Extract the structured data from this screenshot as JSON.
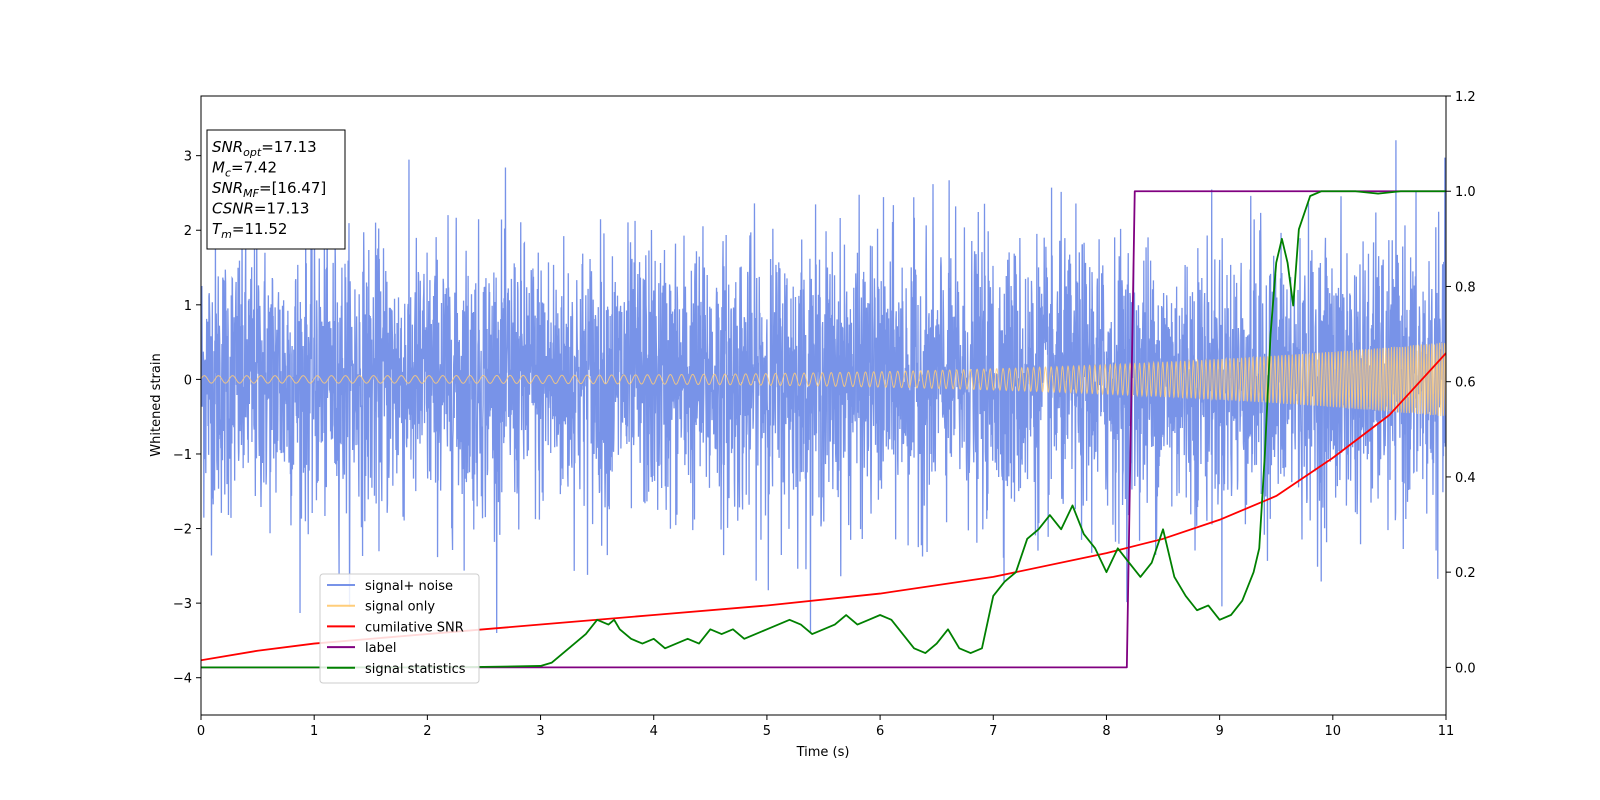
{
  "chart_data": {
    "type": "line",
    "title": "",
    "xlabel": "Time (s)",
    "ylabel": "Whitened strain",
    "xlim": [
      0,
      11
    ],
    "ylim": [
      -4.5,
      3.8
    ],
    "y2lim": [
      -0.1,
      1.2
    ],
    "xticks": [
      "0",
      "1",
      "2",
      "3",
      "4",
      "5",
      "6",
      "7",
      "8",
      "9",
      "10",
      "11"
    ],
    "yticks": [
      "−4",
      "−3",
      "−2",
      "−1",
      "0",
      "1",
      "2",
      "3"
    ],
    "y2ticks": [
      "0.0",
      "0.2",
      "0.4",
      "0.6",
      "0.8",
      "1.0",
      "1.2"
    ],
    "grid": false,
    "legend_position": "lower-left",
    "info_box": [
      {
        "base": "SNR",
        "sub": "opt",
        "value": "=17.13"
      },
      {
        "base": "M",
        "sub": "c",
        "value": "=7.42"
      },
      {
        "base": "SNR",
        "sub": "MF",
        "value": "=[16.47]"
      },
      {
        "base": "CSNR",
        "sub": "",
        "value": "=17.13"
      },
      {
        "base": "T",
        "sub": "m",
        "value": "=11.52"
      }
    ],
    "series": [
      {
        "name": "signal+ noise",
        "color": "#7893e8",
        "axis": "left",
        "kind": "noisy",
        "std": 0.9,
        "peak_max": 3.4,
        "peak_min": -3.4
      },
      {
        "name": "signal only",
        "color": "#ffcd7a",
        "axis": "left",
        "kind": "chirp",
        "amplitude_start": 0.05,
        "amplitude_end": 0.5,
        "freq_start": 8,
        "freq_end": 45
      },
      {
        "name": "cumilative SNR",
        "color": "#ff0000",
        "axis": "right",
        "kind": "line",
        "x": [
          0,
          0.5,
          1,
          2,
          3,
          4,
          5,
          6,
          7,
          8,
          8.5,
          9,
          9.5,
          10,
          10.5,
          11
        ],
        "y": [
          0.015,
          0.035,
          0.05,
          0.07,
          0.09,
          0.11,
          0.13,
          0.155,
          0.19,
          0.24,
          0.27,
          0.31,
          0.36,
          0.44,
          0.53,
          0.66
        ]
      },
      {
        "name": "label",
        "color": "#800080",
        "axis": "right",
        "kind": "line",
        "x": [
          0,
          8.18,
          8.25,
          11
        ],
        "y": [
          0,
          0,
          1,
          1
        ]
      },
      {
        "name": "signal statistics",
        "color": "#008000",
        "axis": "right",
        "kind": "line",
        "x": [
          0,
          0.5,
          1,
          1.5,
          2,
          2.5,
          3,
          3.1,
          3.2,
          3.3,
          3.4,
          3.5,
          3.6,
          3.65,
          3.7,
          3.8,
          3.9,
          4.0,
          4.1,
          4.2,
          4.3,
          4.4,
          4.5,
          4.6,
          4.7,
          4.8,
          4.9,
          5.0,
          5.1,
          5.2,
          5.3,
          5.4,
          5.5,
          5.6,
          5.7,
          5.8,
          5.9,
          6.0,
          6.1,
          6.2,
          6.3,
          6.4,
          6.5,
          6.6,
          6.7,
          6.8,
          6.9,
          7.0,
          7.1,
          7.2,
          7.3,
          7.4,
          7.5,
          7.6,
          7.7,
          7.8,
          7.9,
          8.0,
          8.1,
          8.2,
          8.3,
          8.4,
          8.5,
          8.6,
          8.7,
          8.8,
          8.9,
          9.0,
          9.1,
          9.2,
          9.25,
          9.3,
          9.35,
          9.4,
          9.45,
          9.5,
          9.55,
          9.6,
          9.65,
          9.7,
          9.8,
          9.9,
          10.0,
          10.2,
          10.4,
          10.6,
          10.8,
          11.0
        ],
        "y": [
          0.0,
          0.0,
          0.0,
          0.0,
          0.0,
          0.001,
          0.003,
          0.01,
          0.03,
          0.05,
          0.07,
          0.1,
          0.09,
          0.1,
          0.08,
          0.06,
          0.05,
          0.06,
          0.04,
          0.05,
          0.06,
          0.05,
          0.08,
          0.07,
          0.08,
          0.06,
          0.07,
          0.08,
          0.09,
          0.1,
          0.09,
          0.07,
          0.08,
          0.09,
          0.11,
          0.09,
          0.1,
          0.11,
          0.1,
          0.07,
          0.04,
          0.03,
          0.05,
          0.08,
          0.04,
          0.03,
          0.04,
          0.15,
          0.18,
          0.2,
          0.27,
          0.29,
          0.32,
          0.29,
          0.34,
          0.28,
          0.25,
          0.2,
          0.25,
          0.22,
          0.19,
          0.22,
          0.29,
          0.19,
          0.15,
          0.12,
          0.13,
          0.1,
          0.11,
          0.14,
          0.17,
          0.2,
          0.25,
          0.45,
          0.7,
          0.85,
          0.9,
          0.85,
          0.76,
          0.92,
          0.99,
          1.0,
          1.0,
          1.0,
          0.995,
          1.0,
          1.0,
          1.0
        ]
      }
    ]
  }
}
